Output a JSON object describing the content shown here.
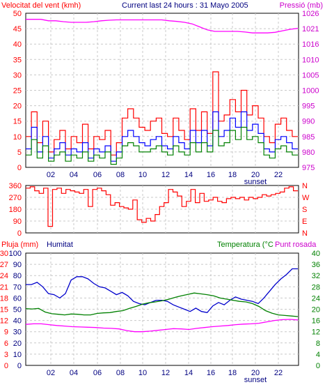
{
  "chart_data": [
    {
      "type": "line",
      "left_axis_label": "Velocitat del vent (kmh)",
      "title": "Current last 24 hours : 31 Mayo 2005",
      "right_axis_label": "Pressió (mb)",
      "x_tick_labels": [
        "02",
        "04",
        "06",
        "08",
        "10",
        "12",
        "14",
        "16",
        "18",
        "20",
        "22"
      ],
      "sunset_label": "sunset",
      "y_left_ticks": [
        0,
        5,
        10,
        15,
        20,
        25,
        30,
        35,
        40,
        45,
        50
      ],
      "y_right_ticks": [
        975,
        980,
        985,
        990,
        995,
        1000,
        1005,
        1010,
        1016,
        1021,
        1026
      ],
      "ylim_left": [
        0,
        50
      ],
      "ylim_right": [
        975,
        1026
      ],
      "colors": {
        "gust": "#ff0000",
        "speed": "#0000ff",
        "average": "#008000",
        "pressure": "#ff00ff"
      },
      "series": [
        {
          "values": [
            10,
            18,
            8,
            15,
            5,
            9,
            12,
            6,
            10,
            8,
            14,
            6,
            10,
            9,
            12,
            4,
            8,
            16,
            19,
            16,
            13,
            12,
            15,
            16,
            11,
            10,
            16,
            12,
            9,
            19,
            12,
            18,
            11,
            31,
            15,
            17,
            22,
            18,
            25,
            17,
            20,
            16,
            10,
            8,
            14,
            16,
            12,
            10
          ]
        },
        {
          "values": [
            6,
            13,
            5,
            10,
            3,
            6,
            8,
            4,
            6,
            5,
            8,
            3,
            6,
            5,
            7,
            2,
            5,
            10,
            12,
            10,
            8,
            7,
            9,
            10,
            7,
            6,
            10,
            8,
            6,
            12,
            8,
            12,
            7,
            18,
            10,
            12,
            16,
            13,
            18,
            12,
            14,
            11,
            6,
            5,
            9,
            10,
            8,
            6
          ]
        },
        {
          "values": [
            4,
            9,
            3,
            7,
            2,
            4,
            5,
            2,
            4,
            3,
            5,
            2,
            4,
            3,
            5,
            1,
            3,
            7,
            8,
            7,
            5,
            5,
            6,
            7,
            5,
            4,
            7,
            5,
            4,
            8,
            5,
            8,
            5,
            12,
            7,
            8,
            12,
            9,
            13,
            9,
            10,
            8,
            4,
            3,
            6,
            7,
            5,
            4
          ]
        },
        {
          "values": [
            1024,
            1024,
            1024,
            1023.5,
            1023.5,
            1023.2,
            1023,
            1023,
            1023,
            1023.2,
            1023.5,
            1023.7,
            1023.8,
            1023.8,
            1023.8,
            1023.8,
            1023.8,
            1023.8,
            1023.8,
            1023.5,
            1023.3,
            1023,
            1022.5,
            1021.5,
            1020.5,
            1020,
            1020,
            1020,
            1020,
            1019.8,
            1019.5,
            1019.5,
            1019.5,
            1019.7,
            1020.2,
            1020.7,
            1021
          ]
        }
      ]
    },
    {
      "type": "line",
      "y_left_ticks": [
        0,
        90,
        180,
        270,
        360
      ],
      "ylim_left": [
        0,
        360
      ],
      "y_right_labels": [
        "N",
        "W",
        "S",
        "E",
        "N"
      ],
      "x_tick_labels": [
        "02",
        "04",
        "06",
        "08",
        "10",
        "12",
        "14",
        "16",
        "18",
        "20",
        "22"
      ],
      "series": [
        {
          "values": [
            340,
            350,
            320,
            300,
            340,
            50,
            330,
            340,
            300,
            330,
            320,
            310,
            300,
            330,
            200,
            330,
            340,
            320,
            290,
            210,
            230,
            200,
            190,
            180,
            250,
            100,
            80,
            110,
            90,
            140,
            200,
            230,
            330,
            310,
            280,
            200,
            240,
            330,
            230,
            300,
            240,
            250,
            270,
            240,
            230,
            260,
            270,
            260,
            270,
            250,
            270,
            260,
            270,
            290,
            280,
            290,
            300,
            310,
            340,
            350,
            320
          ]
        }
      ]
    },
    {
      "type": "line",
      "left_axis_label": "Pluja (mm)",
      "humidity_axis_label": "Humitat",
      "right_axis_label": "Temperatura (°C",
      "dew_label": "Punt rosada",
      "x_tick_labels": [
        "02",
        "04",
        "06",
        "08",
        "10",
        "12",
        "14",
        "16",
        "18",
        "20",
        "22"
      ],
      "sunset_label": "sunset",
      "y_rain_ticks": [
        0,
        3,
        6,
        9,
        12,
        15,
        18,
        21,
        24,
        27,
        30
      ],
      "y_humidity_ticks": [
        0,
        10,
        20,
        30,
        40,
        50,
        60,
        70,
        80,
        90,
        100
      ],
      "y_temp_ticks": [
        0,
        4,
        8,
        12,
        16,
        20,
        24,
        28,
        32,
        36,
        40
      ],
      "ylim_left": [
        0,
        100
      ],
      "ylim_right": [
        0,
        40
      ],
      "series": [
        {
          "values": [
            72,
            72,
            74,
            70,
            64,
            63,
            60,
            64,
            76,
            79,
            79,
            77,
            73,
            70,
            69,
            66,
            63,
            65,
            62,
            57,
            55,
            54,
            56,
            58,
            58,
            57,
            54,
            52,
            50,
            48,
            51,
            48,
            47,
            53,
            56,
            54,
            58,
            61,
            59,
            58,
            57,
            55,
            60,
            66,
            72,
            77,
            81,
            86,
            86
          ]
        },
        {
          "values": [
            20.2,
            20.1,
            20.3,
            19.0,
            18.4,
            18.2,
            18.0,
            18.3,
            18.2,
            18.0,
            18.0,
            18.5,
            18.7,
            18.8,
            19.2,
            19.5,
            20.3,
            21.0,
            21.8,
            22.3,
            22.6,
            23.0,
            23.5,
            24.2,
            24.8,
            25.3,
            25.8,
            25.5,
            25.2,
            24.8,
            24.0,
            23.6,
            23.2,
            22.8,
            22.6,
            22.0,
            21.0,
            19.5,
            18.6,
            18.0,
            17.8,
            17.6,
            17.4
          ]
        },
        {
          "values": [
            14.6,
            14.8,
            14.8,
            14.5,
            14.2,
            14.0,
            13.8,
            13.7,
            13.6,
            13.5,
            13.3,
            13.2,
            13.0,
            12.4,
            12.0,
            12.0,
            12.2,
            12.5,
            12.8,
            13.1,
            13.0,
            12.8,
            13.2,
            13.5,
            13.8,
            14.0,
            14.2,
            14.5,
            14.7,
            14.8,
            15.0,
            15.5,
            16.0,
            16.3,
            16.4,
            16.2
          ]
        }
      ]
    }
  ]
}
